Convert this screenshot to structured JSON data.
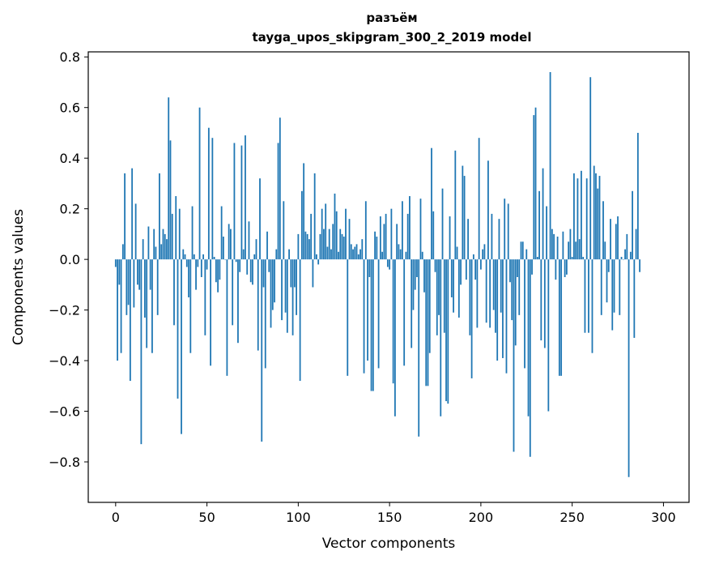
{
  "chart_data": {
    "type": "bar",
    "title": "разъём",
    "subtitle": "tayga_upos_skipgram_300_2_2019 model",
    "xlabel": "Vector components",
    "ylabel": "Components values",
    "xlim": [
      -15,
      314
    ],
    "ylim": [
      -0.96,
      0.82
    ],
    "x_ticks": [
      0,
      50,
      100,
      150,
      200,
      250,
      300
    ],
    "x_tick_labels": [
      "0",
      "50",
      "100",
      "150",
      "200",
      "250",
      "300"
    ],
    "y_ticks": [
      -0.8,
      -0.6,
      -0.4,
      -0.2,
      0.0,
      0.2,
      0.4,
      0.6,
      0.8
    ],
    "y_tick_labels": [
      "−0.8",
      "−0.6",
      "−0.4",
      "−0.2",
      "0.0",
      "0.2",
      "0.4",
      "0.6",
      "0.8"
    ],
    "bar_color": "#1f77b4",
    "grid": false,
    "series": [
      {
        "values": [
          -0.03,
          -0.4,
          -0.1,
          -0.37,
          0.06,
          0.34,
          -0.22,
          -0.18,
          -0.48,
          0.36,
          -0.19,
          0.22,
          -0.1,
          -0.12,
          -0.73,
          0.08,
          -0.23,
          -0.35,
          0.13,
          -0.12,
          -0.37,
          0.12,
          0.05,
          -0.22,
          0.34,
          0.06,
          0.12,
          0.1,
          0.08,
          0.64,
          0.47,
          0.18,
          -0.26,
          0.25,
          -0.55,
          0.2,
          -0.69,
          0.04,
          0.02,
          -0.03,
          -0.15,
          -0.37,
          0.21,
          0.02,
          -0.12,
          -0.03,
          0.6,
          -0.07,
          0.02,
          -0.3,
          -0.04,
          0.52,
          -0.42,
          0.48,
          0.01,
          -0.09,
          -0.13,
          -0.08,
          0.21,
          0.09,
          0.0,
          -0.46,
          0.14,
          0.12,
          -0.26,
          0.46,
          -0.01,
          -0.33,
          -0.05,
          0.45,
          0.04,
          0.49,
          -0.06,
          0.15,
          -0.09,
          -0.1,
          0.02,
          0.08,
          -0.36,
          0.32,
          -0.72,
          -0.11,
          -0.43,
          0.11,
          -0.05,
          -0.27,
          -0.2,
          -0.17,
          0.04,
          0.46,
          0.56,
          -0.24,
          0.23,
          -0.21,
          -0.29,
          0.04,
          -0.11,
          -0.3,
          -0.11,
          -0.22,
          0.1,
          -0.48,
          0.27,
          0.38,
          0.11,
          0.1,
          0.08,
          0.18,
          -0.11,
          0.34,
          0.02,
          -0.02,
          0.1,
          0.2,
          0.12,
          0.22,
          0.05,
          0.12,
          0.04,
          0.14,
          0.26,
          0.19,
          0.03,
          0.12,
          0.1,
          0.09,
          0.2,
          -0.46,
          0.16,
          0.06,
          0.04,
          0.05,
          0.06,
          0.02,
          0.04,
          0.08,
          -0.45,
          0.23,
          -0.4,
          -0.07,
          -0.52,
          -0.52,
          0.11,
          0.09,
          -0.43,
          0.17,
          0.03,
          0.14,
          0.18,
          -0.03,
          -0.04,
          0.2,
          -0.49,
          -0.62,
          0.14,
          0.06,
          0.04,
          0.23,
          -0.42,
          0.03,
          0.18,
          0.25,
          -0.35,
          -0.2,
          -0.12,
          -0.07,
          -0.7,
          0.24,
          0.03,
          -0.13,
          -0.5,
          -0.5,
          -0.37,
          0.44,
          0.19,
          -0.05,
          -0.3,
          -0.22,
          -0.62,
          0.28,
          -0.29,
          -0.56,
          -0.57,
          0.17,
          -0.15,
          -0.21,
          0.43,
          0.05,
          -0.23,
          -0.1,
          0.37,
          0.33,
          -0.08,
          0.16,
          -0.3,
          -0.47,
          0.02,
          -0.08,
          -0.27,
          0.48,
          -0.04,
          0.04,
          0.06,
          -0.25,
          0.39,
          -0.27,
          0.18,
          -0.2,
          -0.29,
          -0.4,
          0.16,
          -0.21,
          -0.39,
          0.24,
          -0.45,
          0.22,
          -0.09,
          -0.24,
          -0.76,
          -0.34,
          -0.07,
          -0.22,
          0.07,
          0.07,
          -0.43,
          0.04,
          -0.62,
          -0.78,
          -0.06,
          0.57,
          0.6,
          0.01,
          0.27,
          -0.32,
          0.36,
          -0.35,
          0.21,
          -0.6,
          0.74,
          0.12,
          0.1,
          -0.08,
          0.09,
          -0.46,
          -0.46,
          0.11,
          -0.07,
          -0.06,
          0.07,
          0.12,
          0.01,
          0.34,
          0.07,
          0.32,
          0.08,
          0.35,
          0.01,
          -0.29,
          0.32,
          -0.29,
          0.72,
          -0.37,
          0.37,
          0.34,
          0.28,
          0.33,
          -0.22,
          0.23,
          0.07,
          -0.17,
          -0.05,
          0.16,
          -0.28,
          -0.21,
          0.14,
          0.17,
          -0.22,
          0.01,
          0.0,
          0.04,
          0.1,
          -0.86,
          0.03,
          0.27,
          -0.31,
          0.12,
          0.5,
          -0.05
        ]
      }
    ]
  }
}
